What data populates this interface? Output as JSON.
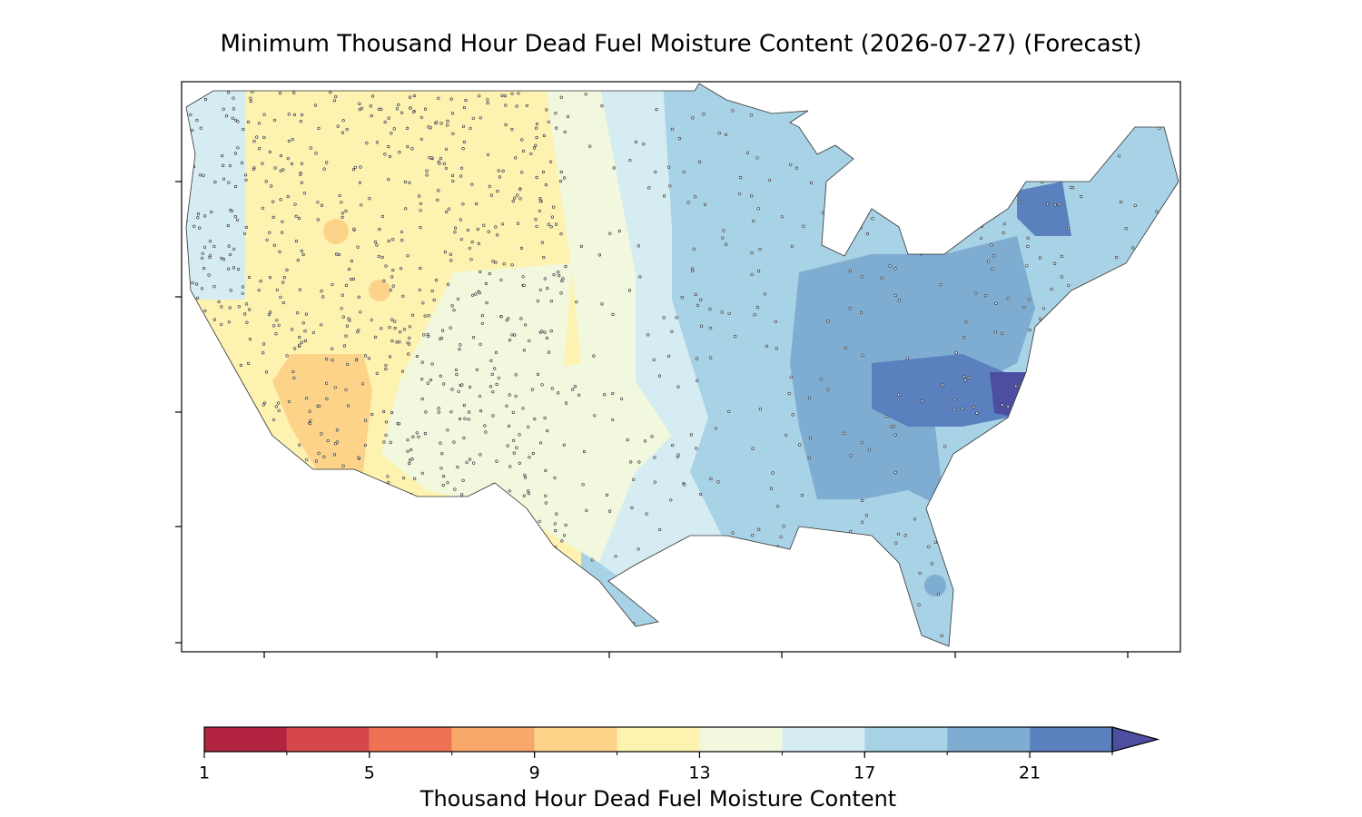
{
  "title": "Minimum Thousand Hour Dead Fuel Moisture Content (2026-07-27) (Forecast)",
  "colorbar": {
    "label": "Thousand Hour Dead Fuel Moisture Content",
    "bounds": [
      1,
      3,
      5,
      7,
      9,
      11,
      13,
      15,
      17,
      19,
      21,
      23
    ],
    "colors": [
      "#b2243f",
      "#d6474a",
      "#ee7253",
      "#f7a86a",
      "#fdd38a",
      "#fef2b0",
      "#f1f8dd",
      "#d6ecf3",
      "#a8d2e5",
      "#7fadd2",
      "#5a80bd"
    ],
    "extend": "max",
    "extend_color": "#4d4ea0",
    "ticks": [
      1,
      5,
      9,
      13,
      17,
      21
    ]
  }
}
